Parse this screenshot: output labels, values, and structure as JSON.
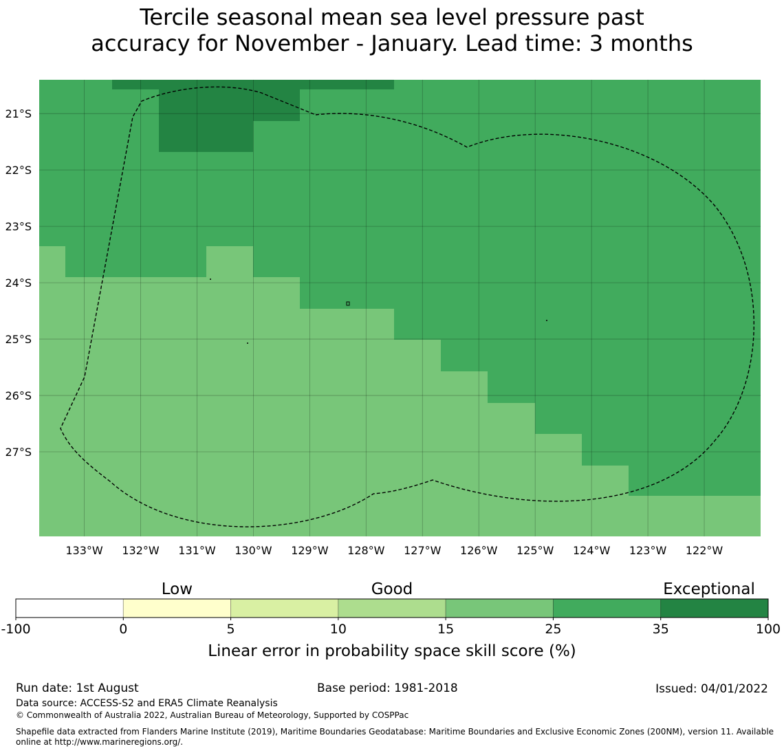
{
  "title": {
    "line1": "Tercile seasonal mean sea level pressure past",
    "line2": "accuracy for November - January. Lead time: 3 months"
  },
  "map": {
    "lat_labels": [
      "21°S",
      "22°S",
      "23°S",
      "24°S",
      "25°S",
      "26°S",
      "27°S"
    ],
    "lon_labels": [
      "133°W",
      "132°W",
      "131°W",
      "130°W",
      "129°W",
      "128°W",
      "127°W",
      "126°W",
      "125°W",
      "124°W",
      "123°W",
      "122°W"
    ],
    "lat_values": [
      -21,
      -22,
      -23,
      -24,
      -25,
      -26,
      -27
    ],
    "lon_values": [
      -133,
      -132,
      -131,
      -130,
      -129,
      -128,
      -127,
      -126,
      -125,
      -124,
      -123,
      -122
    ],
    "extent": {
      "lon_min": -133.8,
      "lon_max": -121.0,
      "lat_min": -28.5,
      "lat_max": -20.4
    },
    "colors": {
      "class_25_35": "#41ab5d",
      "class_15_25": "#78c679",
      "class_35_100": "#238443",
      "boundary": "#000000"
    }
  },
  "legend": {
    "category_labels": [
      "Low",
      "Good",
      "Exceptional"
    ],
    "ticks": [
      "-100",
      "0",
      "5",
      "10",
      "15",
      "25",
      "35",
      "100"
    ],
    "colors": [
      "#ffffff",
      "#ffffcc",
      "#d9f0a3",
      "#addd8e",
      "#78c679",
      "#41ab5d",
      "#238443"
    ],
    "label": "Linear error in probability space skill score (%)"
  },
  "footer": {
    "run_date": "Run date: 1st August",
    "base_period": "Base period: 1981-2018",
    "issued": "Issued: 04/01/2022",
    "data_source": "Data source: ACCESS-S2 and ERA5 Climate Reanalysis",
    "copyright": "© Commonwealth of Australia 2022, Australian Bureau of Meteorology, Supported by COSPPac",
    "shapefile_line1": "Shapefile data extracted from Flanders Marine Institute (2019), Maritime Boundaries Geodatabase: Maritime Boundaries and Exclusive Economic Zones (200NM), version 11. Available",
    "shapefile_line2": "online at http://www.marineregions.org/."
  }
}
